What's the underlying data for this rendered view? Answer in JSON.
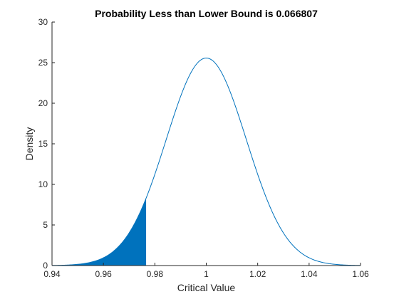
{
  "chart_data": {
    "type": "area",
    "title": "Probability Less than Lower Bound is 0.066807",
    "xlabel": "Critical Value",
    "ylabel": "Density",
    "xlim": [
      0.94,
      1.06
    ],
    "ylim": [
      0,
      30
    ],
    "xticks": [
      0.94,
      0.96,
      0.98,
      1,
      1.02,
      1.04,
      1.06
    ],
    "xtick_labels": [
      "0.94",
      "0.96",
      "0.98",
      "1",
      "1.02",
      "1.04",
      "1.06"
    ],
    "yticks": [
      0,
      5,
      10,
      15,
      20,
      25,
      30
    ],
    "ytick_labels": [
      "0",
      "5",
      "10",
      "15",
      "20",
      "25",
      "30"
    ],
    "grid": false,
    "series": [
      {
        "kind": "normal-pdf-curve",
        "mean": 1.0,
        "sd": 0.0156,
        "x_range": [
          0.94,
          1.06
        ],
        "peak_density": 25.57,
        "color": "#0072BD"
      },
      {
        "kind": "shaded-lower-tail",
        "x_from": 0.94,
        "x_to": 0.9766,
        "density_at_bound": 8.3,
        "probability": 0.066807,
        "color": "#0072BD"
      }
    ]
  }
}
